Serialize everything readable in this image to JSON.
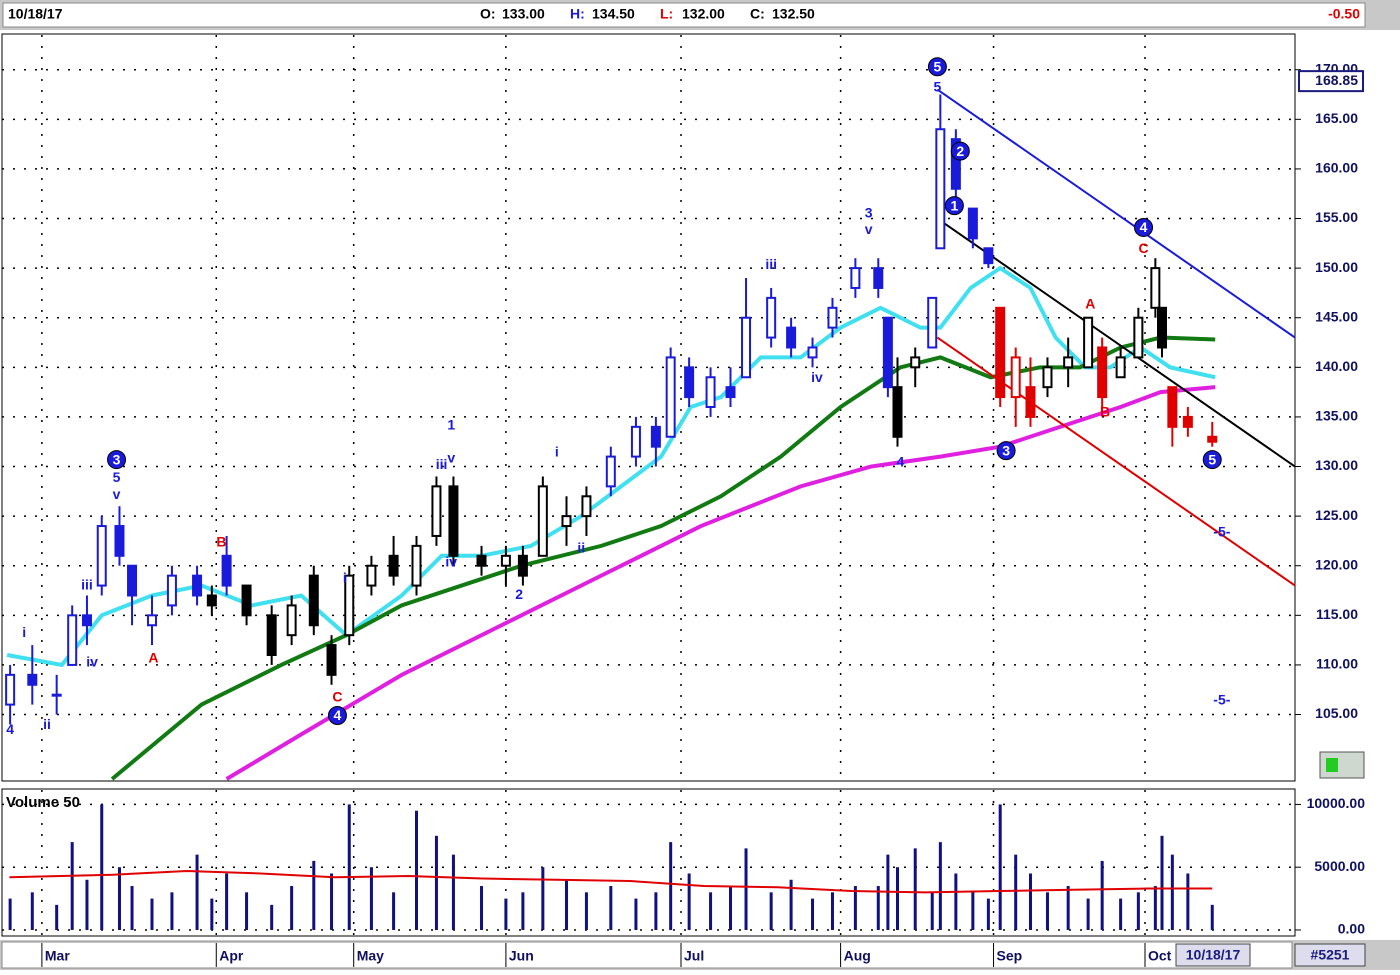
{
  "header": {
    "date": "10/18/17",
    "quote": [
      {
        "label": "O:",
        "value": "133.00",
        "color": "#000000"
      },
      {
        "label": "H:",
        "value": "134.50",
        "color": "#1a1adb"
      },
      {
        "label": "L:",
        "value": "132.00",
        "color": "#e00000"
      },
      {
        "label": "C:",
        "value": "132.50",
        "color": "#000000"
      }
    ],
    "change": "-0.50",
    "change_color": "#e00000"
  },
  "footer": {
    "date": "10/18/17",
    "id": "#5251"
  },
  "chart_data": [
    {
      "type": "candlestick",
      "x": [
        1.1,
        4.1,
        7.4,
        9.5,
        11.5,
        13.5,
        15.9,
        17.6,
        20.3,
        23.0,
        26.4,
        28.4,
        30.4,
        33.1,
        36.5,
        39.2,
        42.2,
        44.6,
        47.0,
        50.0,
        53.0,
        56.1,
        58.8,
        61.1,
        64.9,
        68.2,
        70.5,
        73.2,
        76.4,
        79.1,
        82.4,
        85.8,
        88.5,
        90.5,
        93.0,
        95.9,
        98.6,
        100.7,
        104.1,
        106.8,
        109.7,
        112.4,
        115.5,
        118.6,
        119.9,
        121.2,
        123.6,
        125.9,
        127.0,
        129.1,
        131.4,
        133.5,
        135.1,
        137.2,
        139.2,
        141.5,
        144.3,
        147.0,
        148.9,
        151.4,
        153.8,
        156.1,
        157.0,
        158.4,
        160.5,
        163.8
      ],
      "open": [
        106,
        109,
        107,
        110,
        115,
        118,
        124,
        120,
        114,
        116,
        119,
        117,
        121,
        118,
        115,
        113,
        119,
        112,
        113,
        118,
        121,
        118,
        123,
        128,
        121,
        120,
        121,
        121,
        124,
        125,
        128,
        131,
        134,
        133,
        140,
        136,
        138,
        139,
        143,
        144,
        141,
        144,
        148,
        150,
        145,
        138,
        140,
        142,
        152,
        163,
        156,
        152,
        146,
        137,
        138,
        138,
        140,
        140,
        142,
        139,
        141,
        146,
        146,
        138,
        135,
        133
      ],
      "high": [
        110,
        112,
        109,
        116,
        117,
        125,
        126,
        120,
        117,
        120,
        120,
        118,
        123,
        118,
        116,
        117,
        120,
        113,
        120,
        121,
        123,
        123,
        129,
        129,
        122,
        122,
        122,
        129,
        127,
        128,
        132,
        135,
        135,
        142,
        141,
        140,
        140,
        149,
        148,
        145,
        143,
        147,
        151,
        151,
        145,
        141,
        142,
        147,
        167.5,
        164,
        156,
        152,
        146,
        142,
        141,
        141,
        143,
        145,
        143,
        142,
        146,
        151,
        146,
        138,
        136,
        134.5
      ],
      "low": [
        104,
        106,
        105,
        110,
        112,
        117,
        120,
        114,
        112,
        115,
        116,
        115,
        117,
        114,
        110,
        112,
        113,
        108,
        112,
        117,
        118,
        117,
        122,
        120,
        119,
        118,
        118,
        121,
        122,
        123,
        127,
        130,
        130,
        133,
        136,
        135,
        136,
        139,
        142,
        141,
        140,
        143,
        147,
        147,
        137,
        132,
        138,
        142,
        152,
        156,
        152,
        150,
        136,
        134,
        134,
        137,
        138,
        140,
        136,
        139,
        141,
        145,
        141,
        132,
        133,
        132
      ],
      "close": [
        109,
        108,
        107,
        115,
        114,
        124,
        121,
        117,
        115,
        119,
        117,
        116,
        118,
        115,
        111,
        116,
        114,
        109,
        119,
        120,
        119,
        122,
        128,
        121,
        120,
        121,
        119,
        128,
        125,
        127,
        131,
        134,
        132,
        141,
        137,
        139,
        137,
        145,
        147,
        142,
        142,
        146,
        150,
        148,
        138,
        133,
        141,
        147,
        164,
        158,
        153,
        150.5,
        137,
        141,
        135,
        140,
        141,
        145,
        137,
        141,
        145,
        150,
        142,
        134,
        134,
        132.5
      ],
      "colors": [
        "#1a1adb",
        "#1a1adb",
        "#1a1adb",
        "#1a1adb",
        "#1a1adb",
        "#1a1adb",
        "#1a1adb",
        "#1a1adb",
        "#1a1adb",
        "#1a1adb",
        "#1a1adb",
        "#000000",
        "#1a1adb",
        "#000000",
        "#000000",
        "#000000",
        "#000000",
        "#000000",
        "#000000",
        "#000000",
        "#000000",
        "#000000",
        "#000000",
        "#000000",
        "#000000",
        "#000000",
        "#000000",
        "#000000",
        "#000000",
        "#000000",
        "#1a1adb",
        "#1a1adb",
        "#1a1adb",
        "#1a1adb",
        "#1a1adb",
        "#1a1adb",
        "#1a1adb",
        "#1a1adb",
        "#1a1adb",
        "#1a1adb",
        "#1a1adb",
        "#1a1adb",
        "#1a1adb",
        "#1a1adb",
        "#1a1adb",
        "#000000",
        "#000000",
        "#1a1adb",
        "#1a1adb",
        "#1a1adb",
        "#1a1adb",
        "#1a1adb",
        "#e00000",
        "#e00000",
        "#e00000",
        "#000000",
        "#000000",
        "#000000",
        "#e00000",
        "#000000",
        "#000000",
        "#000000",
        "#000000",
        "#e00000",
        "#e00000",
        "#e00000"
      ],
      "xlim": [
        0,
        175
      ],
      "ylim": [
        98.4,
        173.5
      ],
      "xticks": [
        {
          "value": 5.4,
          "label": "Mar"
        },
        {
          "value": 29,
          "label": "Apr"
        },
        {
          "value": 47.6,
          "label": "May"
        },
        {
          "value": 68.2,
          "label": "Jun"
        },
        {
          "value": 91.9,
          "label": "Jul"
        },
        {
          "value": 113.5,
          "label": "Aug"
        },
        {
          "value": 134.2,
          "label": "Sep"
        },
        {
          "value": 154.7,
          "label": "Oct"
        }
      ],
      "yticks": [
        {
          "value": 105,
          "label": "105.00"
        },
        {
          "value": 110,
          "label": "110.00"
        },
        {
          "value": 115,
          "label": "115.00"
        },
        {
          "value": 120,
          "label": "120.00"
        },
        {
          "value": 125,
          "label": "125.00"
        },
        {
          "value": 130,
          "label": "130.00"
        },
        {
          "value": 135,
          "label": "135.00"
        },
        {
          "value": 140,
          "label": "140.00"
        },
        {
          "value": 145,
          "label": "145.00"
        },
        {
          "value": 150,
          "label": "150.00"
        },
        {
          "value": 155,
          "label": "155.00"
        },
        {
          "value": 160,
          "label": "160.00"
        },
        {
          "value": 165,
          "label": "165.00"
        },
        {
          "value": 170,
          "label": "170.00"
        }
      ],
      "grid": true,
      "series": [
        {
          "color": "#40e0f0",
          "x": [
            0.7,
            8.1,
            13.5,
            20.3,
            27.0,
            33.8,
            40.5,
            46.6,
            54.1,
            59.5,
            64.9,
            71.6,
            78.4,
            83.8,
            89.2,
            93.2,
            97.3,
            102.7,
            108.1,
            113.5,
            118.9,
            124.3,
            127.0,
            131.1,
            135.1,
            139.2,
            142.6,
            146.6,
            150.0,
            154.1,
            158.1,
            164.2
          ],
          "values": [
            111,
            110,
            115,
            117,
            118,
            116,
            117,
            113,
            117,
            121,
            121,
            122,
            125,
            128,
            131,
            136,
            137,
            141,
            141,
            144,
            146,
            144,
            144,
            148,
            150,
            148,
            143,
            140,
            140,
            142,
            140,
            139
          ]
        },
        {
          "color": "#127a12",
          "x": [
            14.9,
            27.0,
            37.8,
            46.6,
            54.1,
            62.2,
            70.3,
            81.1,
            89.2,
            97.3,
            105.4,
            113.5,
            121.6,
            127.0,
            133.8,
            140.5,
            145.9,
            151.4,
            156.8,
            164.2
          ],
          "values": [
            98.5,
            106,
            110,
            113,
            116,
            118,
            120,
            122,
            124,
            127,
            131,
            136,
            140,
            141,
            139,
            140,
            140,
            142,
            143,
            142.8
          ]
        },
        {
          "color": "#e020e0",
          "x": [
            30.4,
            40.5,
            54.1,
            67.6,
            81.1,
            94.6,
            108.1,
            117.6,
            127.0,
            135.1,
            143.2,
            151.4,
            156.8,
            164.2
          ],
          "values": [
            98.5,
            103,
            109,
            114,
            119,
            124,
            128,
            130,
            131,
            132,
            134,
            136,
            137.5,
            138
          ]
        }
      ],
      "trendlines": [
        {
          "color": "#1a1adb",
          "x": [
            126.6,
            175
          ],
          "values": [
            168,
            143
          ]
        },
        {
          "color": "#000000",
          "x": [
            126.6,
            175
          ],
          "values": [
            155,
            130
          ]
        },
        {
          "color": "#e00000",
          "x": [
            126.6,
            175
          ],
          "values": [
            143,
            118
          ]
        }
      ],
      "annotations": [
        {
          "text": "4",
          "x": 1.1,
          "y": 103.5,
          "color": "#1a1adb"
        },
        {
          "text": "i",
          "x": 3.0,
          "y": 113.3,
          "color": "#1a1adb"
        },
        {
          "text": "ii",
          "x": 6.1,
          "y": 104.0,
          "color": "#1a1adb"
        },
        {
          "text": "iii",
          "x": 11.5,
          "y": 118.1,
          "color": "#1a1adb"
        },
        {
          "text": "iv",
          "x": 12.2,
          "y": 110.3,
          "color": "#1a1adb"
        },
        {
          "text": "3",
          "x": 15.5,
          "y": 130.7,
          "color": "#1a1adb",
          "circled": true
        },
        {
          "text": "5",
          "x": 15.5,
          "y": 128.9,
          "color": "#1a1adb"
        },
        {
          "text": "v",
          "x": 15.5,
          "y": 127.2,
          "color": "#1a1adb"
        },
        {
          "text": "A",
          "x": 20.5,
          "y": 110.7,
          "color": "#e00000"
        },
        {
          "text": "B",
          "x": 29.7,
          "y": 122.4,
          "color": "#e00000"
        },
        {
          "text": "C",
          "x": 45.4,
          "y": 106.8,
          "color": "#e00000"
        },
        {
          "text": "4",
          "x": 45.4,
          "y": 104.9,
          "color": "#1a1adb",
          "circled": true
        },
        {
          "text": "i",
          "x": 46.4,
          "y": 118.8,
          "color": "#1a1adb"
        },
        {
          "text": "1",
          "x": 60.8,
          "y": 134.2,
          "color": "#1a1adb"
        },
        {
          "text": "iii",
          "x": 59.5,
          "y": 130.2,
          "color": "#1a1adb"
        },
        {
          "text": "v",
          "x": 60.8,
          "y": 130.9,
          "color": "#1a1adb"
        },
        {
          "text": "iv",
          "x": 60.8,
          "y": 120.4,
          "color": "#1a1adb"
        },
        {
          "text": "2",
          "x": 70.0,
          "y": 117.1,
          "color": "#1a1adb"
        },
        {
          "text": "i",
          "x": 75.1,
          "y": 131.5,
          "color": "#1a1adb"
        },
        {
          "text": "ii",
          "x": 78.4,
          "y": 121.8,
          "color": "#1a1adb"
        },
        {
          "text": "iii",
          "x": 104.1,
          "y": 150.4,
          "color": "#1a1adb"
        },
        {
          "text": "iv",
          "x": 110.3,
          "y": 139.0,
          "color": "#1a1adb"
        },
        {
          "text": "3",
          "x": 117.3,
          "y": 155.6,
          "color": "#1a1adb"
        },
        {
          "text": "v",
          "x": 117.3,
          "y": 153.9,
          "color": "#1a1adb"
        },
        {
          "text": "4",
          "x": 121.6,
          "y": 130.5,
          "color": "#1a1adb"
        },
        {
          "text": "5",
          "x": 126.6,
          "y": 170.3,
          "color": "#1a1adb",
          "circled": true
        },
        {
          "text": "5",
          "x": 126.6,
          "y": 168.3,
          "color": "#1a1adb"
        },
        {
          "text": "2",
          "x": 129.7,
          "y": 161.8,
          "color": "#1a1adb",
          "circled": true
        },
        {
          "text": "1",
          "x": 128.9,
          "y": 156.3,
          "color": "#1a1adb",
          "circled": true
        },
        {
          "text": "3",
          "x": 135.9,
          "y": 131.6,
          "color": "#1a1adb",
          "circled": true
        },
        {
          "text": "A",
          "x": 147.3,
          "y": 146.4,
          "color": "#e00000"
        },
        {
          "text": "B",
          "x": 149.3,
          "y": 135.5,
          "color": "#e00000"
        },
        {
          "text": "C",
          "x": 154.5,
          "y": 152.0,
          "color": "#e00000"
        },
        {
          "text": "4",
          "x": 154.5,
          "y": 154.1,
          "color": "#1a1adb",
          "circled": true
        },
        {
          "text": "5",
          "x": 163.8,
          "y": 130.7,
          "color": "#1a1adb",
          "circled": true
        },
        {
          "text": "-5-",
          "x": 165.1,
          "y": 123.4,
          "color": "#1a1adb"
        },
        {
          "text": "-5-",
          "x": 165.1,
          "y": 106.5,
          "color": "#1a1adb"
        }
      ],
      "price_marker": 168.85
    },
    {
      "type": "bar",
      "title": "Volume 50",
      "color": "#101080",
      "x": [
        1.1,
        4.1,
        7.4,
        9.5,
        11.5,
        13.5,
        15.9,
        17.6,
        20.3,
        23.0,
        26.4,
        28.4,
        30.4,
        33.1,
        36.5,
        39.2,
        42.2,
        44.6,
        47.0,
        50.0,
        53.0,
        56.1,
        58.8,
        61.1,
        64.9,
        68.2,
        70.5,
        73.2,
        76.4,
        79.1,
        82.4,
        85.8,
        88.5,
        90.5,
        93.0,
        95.9,
        98.6,
        100.7,
        104.1,
        106.8,
        109.7,
        112.4,
        115.5,
        118.6,
        119.9,
        121.2,
        123.6,
        125.9,
        127.0,
        129.1,
        131.4,
        133.5,
        135.1,
        137.2,
        139.2,
        141.5,
        144.3,
        147.0,
        148.9,
        151.4,
        153.8,
        156.1,
        157.0,
        158.4,
        160.5,
        163.8
      ],
      "values": [
        2500,
        3000,
        2000,
        7000,
        4000,
        10000,
        5000,
        3500,
        2500,
        3000,
        6000,
        2500,
        4500,
        3000,
        2000,
        3500,
        5500,
        4500,
        10000,
        5000,
        3000,
        9500,
        7500,
        6000,
        3500,
        2500,
        3000,
        5000,
        4000,
        3000,
        3500,
        2500,
        3000,
        7000,
        4500,
        3000,
        3500,
        6500,
        3000,
        4000,
        2500,
        3000,
        3500,
        3500,
        6000,
        5000,
        6500,
        3000,
        7000,
        4500,
        3000,
        2500,
        10000,
        6000,
        4500,
        3000,
        3500,
        2500,
        5500,
        2500,
        3000,
        3500,
        7500,
        6000,
        4500,
        2000
      ],
      "xlim": [
        0,
        175
      ],
      "ylim": [
        -400,
        11150
      ],
      "yticks": [
        {
          "value": 0,
          "label": "0.00"
        },
        {
          "value": 5000,
          "label": "5000.00"
        },
        {
          "value": 10000,
          "label": "10000.00"
        }
      ],
      "series": [
        {
          "color": "#e00000",
          "x": [
            1,
            15,
            25,
            35,
            45,
            55,
            65,
            75,
            85,
            95,
            105,
            115,
            125,
            135,
            145,
            155,
            163.8
          ],
          "values": [
            4200,
            4400,
            4700,
            4500,
            4200,
            4300,
            4100,
            4000,
            3900,
            3500,
            3400,
            3100,
            3000,
            3100,
            3200,
            3300,
            3300
          ]
        }
      ]
    }
  ]
}
